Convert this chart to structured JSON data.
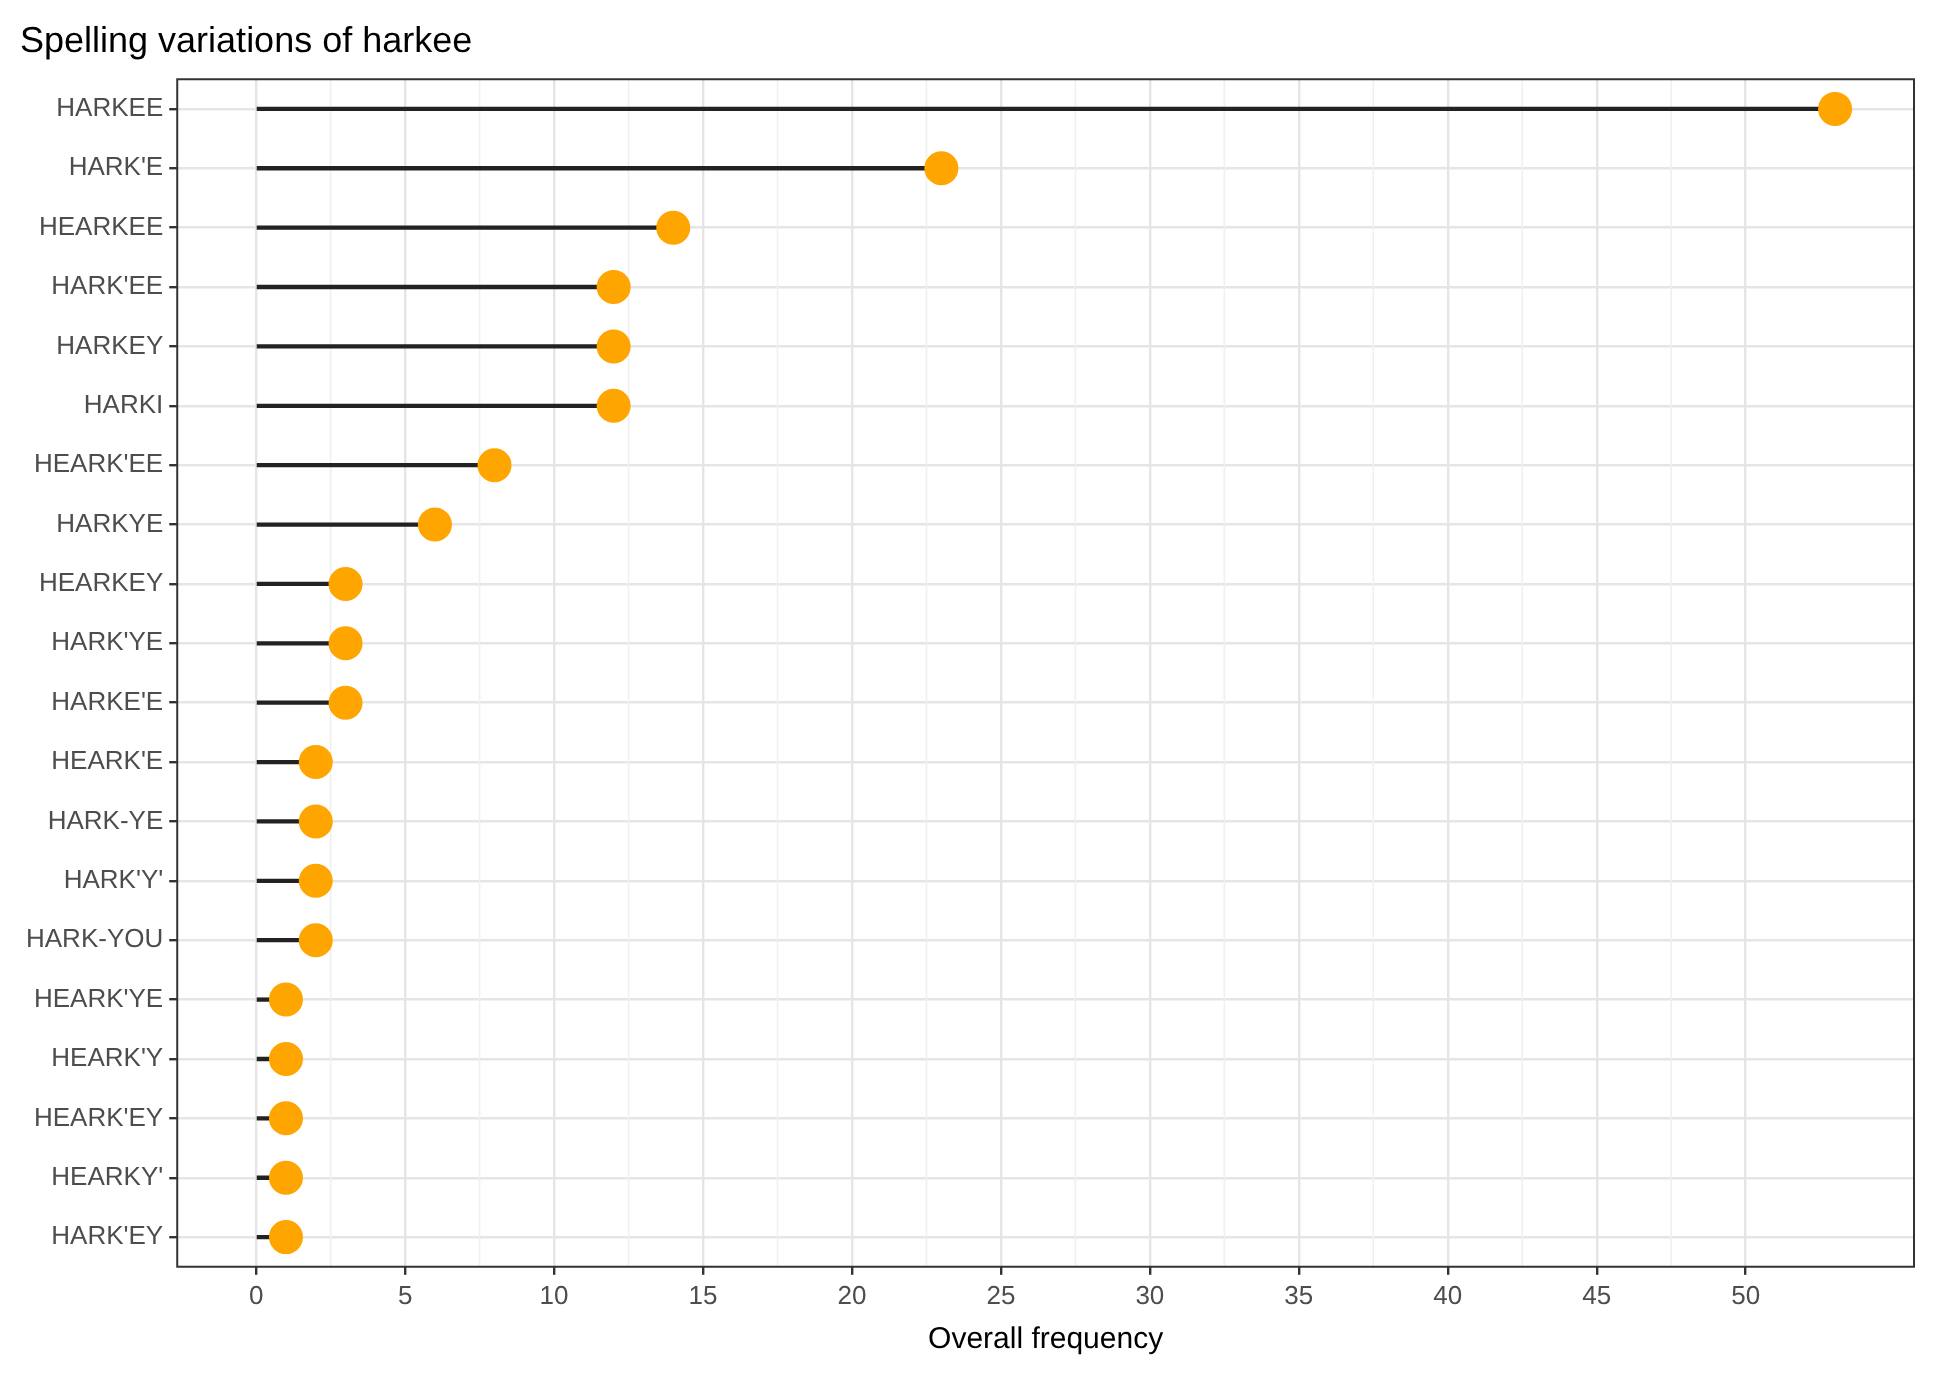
{
  "chart_data": {
    "type": "lollipop",
    "title": "Spelling variations of harkee",
    "xlabel": "Overall frequency",
    "orientation": "horizontal",
    "categories": [
      "HARKEE",
      "HARK'E",
      "HEARKEE",
      "HARK'EE",
      "HARKEY",
      "HARKI",
      "HEARK'EE",
      "HARKYE",
      "HEARKEY",
      "HARK'YE",
      "HARKE'E",
      "HEARK'E",
      "HARK-YE",
      "HARK'Y'",
      "HARK-YOU",
      "HEARK'YE",
      "HEARK'Y",
      "HEARK'EY",
      "HEARKY'",
      "HARK'EY"
    ],
    "values": [
      53,
      23,
      14,
      12,
      12,
      12,
      8,
      6,
      3,
      3,
      3,
      2,
      2,
      2,
      2,
      1,
      1,
      1,
      1,
      1
    ],
    "color": "#ffa500",
    "xlim": [
      -2.65,
      55.65
    ],
    "xticks": [
      0,
      5,
      10,
      15,
      20,
      25,
      30,
      35,
      40,
      45,
      50
    ],
    "grid": true
  }
}
